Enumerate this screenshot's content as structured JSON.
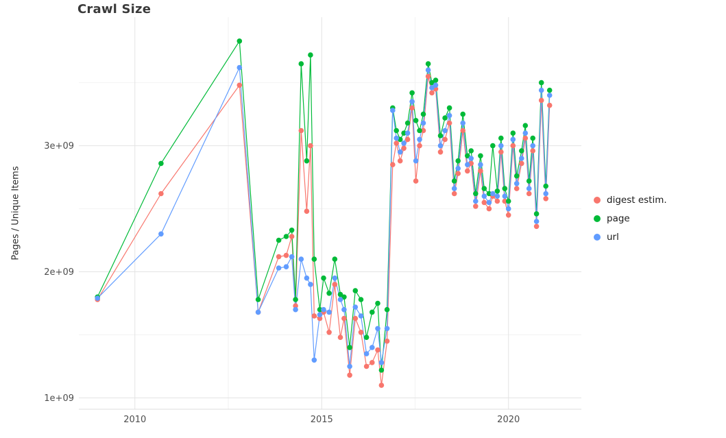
{
  "title": "Crawl Size",
  "ylabel": "Pages / Unique Items",
  "chart_data": {
    "type": "line",
    "title": "Crawl Size",
    "xlabel": "",
    "ylabel": "Pages / Unique Items",
    "y_unit": "values in units of 1e9 pages/items; axis tick labels shown in scientific notation",
    "grid": true,
    "legend_position": "right",
    "xlim": [
      2008.5,
      2021.95
    ],
    "ylim": [
      0.91,
      4.02
    ],
    "x_ticks": [
      2010,
      2015,
      2020
    ],
    "x_tick_labels": [
      "2010",
      "2015",
      "2020"
    ],
    "x_minor_ticks": [
      2012.5,
      2017.5
    ],
    "y_ticks": [
      1,
      2,
      3
    ],
    "y_tick_labels": [
      "1e+09",
      "2e+09",
      "3e+09"
    ],
    "y_minor_ticks": [
      1.5,
      2.5,
      3.5
    ],
    "x": [
      2009.0,
      2010.7,
      2012.8,
      2013.3,
      2013.85,
      2014.05,
      2014.2,
      2014.3,
      2014.45,
      2014.6,
      2014.7,
      2014.8,
      2014.95,
      2015.05,
      2015.2,
      2015.35,
      2015.5,
      2015.6,
      2015.75,
      2015.9,
      2016.05,
      2016.2,
      2016.35,
      2016.5,
      2016.6,
      2016.75,
      2016.9,
      2017.0,
      2017.1,
      2017.2,
      2017.3,
      2017.42,
      2017.52,
      2017.62,
      2017.72,
      2017.85,
      2017.95,
      2018.05,
      2018.18,
      2018.3,
      2018.42,
      2018.55,
      2018.65,
      2018.78,
      2018.9,
      2019.0,
      2019.12,
      2019.25,
      2019.35,
      2019.48,
      2019.58,
      2019.7,
      2019.8,
      2019.9,
      2020.0,
      2020.12,
      2020.22,
      2020.35,
      2020.45,
      2020.55,
      2020.65,
      2020.75,
      2020.88,
      2021.0,
      2021.1
    ],
    "series": [
      {
        "name": "digest estim.",
        "color": "#F8766D",
        "values": [
          1.78,
          2.62,
          3.48,
          1.68,
          2.12,
          2.13,
          2.28,
          1.73,
          3.12,
          2.48,
          3.0,
          1.65,
          1.63,
          1.68,
          1.52,
          1.9,
          1.48,
          1.63,
          1.18,
          1.63,
          1.52,
          1.25,
          1.28,
          1.38,
          1.1,
          1.45,
          2.85,
          3.02,
          2.88,
          2.98,
          3.05,
          3.3,
          2.72,
          3.0,
          3.12,
          3.55,
          3.42,
          3.45,
          2.95,
          3.05,
          3.18,
          2.62,
          2.78,
          3.12,
          2.8,
          2.86,
          2.52,
          2.8,
          2.55,
          2.5,
          2.6,
          2.56,
          2.95,
          2.56,
          2.45,
          3.0,
          2.66,
          2.86,
          3.06,
          2.62,
          2.96,
          2.36,
          3.36,
          2.58,
          3.32
        ]
      },
      {
        "name": "page",
        "color": "#00BA38",
        "values": [
          1.8,
          2.86,
          3.83,
          1.78,
          2.25,
          2.28,
          2.33,
          1.78,
          3.65,
          2.88,
          3.72,
          2.1,
          1.7,
          1.95,
          1.83,
          2.1,
          1.82,
          1.8,
          1.4,
          1.85,
          1.78,
          1.48,
          1.68,
          1.75,
          1.22,
          1.7,
          3.3,
          3.12,
          3.05,
          3.1,
          3.18,
          3.42,
          3.2,
          3.12,
          3.25,
          3.65,
          3.5,
          3.52,
          3.08,
          3.22,
          3.3,
          2.72,
          2.88,
          3.25,
          2.92,
          2.96,
          2.62,
          2.92,
          2.66,
          2.62,
          3.0,
          2.64,
          3.06,
          2.66,
          2.56,
          3.1,
          2.76,
          2.96,
          3.16,
          2.72,
          3.06,
          2.46,
          3.5,
          2.68,
          3.44
        ]
      },
      {
        "name": "url",
        "color": "#619CFF",
        "values": [
          1.79,
          2.3,
          3.62,
          1.68,
          2.03,
          2.04,
          2.12,
          1.7,
          2.1,
          1.95,
          1.9,
          1.3,
          1.66,
          1.7,
          1.68,
          1.95,
          1.78,
          1.7,
          1.25,
          1.72,
          1.65,
          1.35,
          1.4,
          1.55,
          1.28,
          1.55,
          3.28,
          3.06,
          2.95,
          3.02,
          3.1,
          3.35,
          2.88,
          3.05,
          3.18,
          3.6,
          3.46,
          3.48,
          3.0,
          3.12,
          3.24,
          2.66,
          2.82,
          3.18,
          2.85,
          2.9,
          2.56,
          2.85,
          2.6,
          2.55,
          2.62,
          2.6,
          3.0,
          2.6,
          2.5,
          3.05,
          2.7,
          2.9,
          3.1,
          2.66,
          3.0,
          2.4,
          3.44,
          2.62,
          3.4
        ]
      }
    ]
  }
}
